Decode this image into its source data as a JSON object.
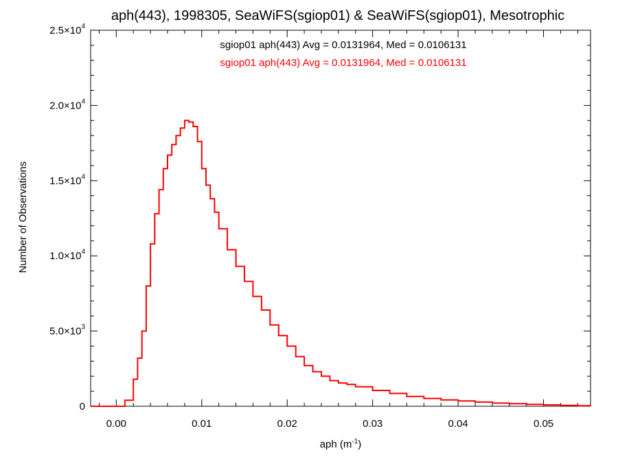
{
  "chart_data": {
    "type": "line",
    "title": "aph(443), 1998305, SeaWiFS(sgiop01) & SeaWiFS(sgiop01), Mesotrophic",
    "xlabel": "aph (m",
    "xlabel_sup": "-1",
    "xlabel_end": ")",
    "ylabel": "Number of Observations",
    "xlim": [
      -0.003,
      0.0555
    ],
    "ylim": [
      0,
      25000
    ],
    "grid": false,
    "x_ticks": [
      {
        "value": 0.0,
        "label": "0.00"
      },
      {
        "value": 0.01,
        "label": "0.01"
      },
      {
        "value": 0.02,
        "label": "0.02"
      },
      {
        "value": 0.03,
        "label": "0.03"
      },
      {
        "value": 0.04,
        "label": "0.04"
      },
      {
        "value": 0.05,
        "label": "0.05"
      }
    ],
    "y_ticks": [
      {
        "value": 0,
        "base": "0",
        "sup": ""
      },
      {
        "value": 5000,
        "base": "5.0×10",
        "sup": "3"
      },
      {
        "value": 10000,
        "base": "1.0×10",
        "sup": "4"
      },
      {
        "value": 15000,
        "base": "1.5×10",
        "sup": "4"
      },
      {
        "value": 20000,
        "base": "2.0×10",
        "sup": "4"
      },
      {
        "value": 25000,
        "base": "2.5×10",
        "sup": "4"
      }
    ],
    "annotations": [
      {
        "text": "sgiop01 aph(443) Avg = 0.0131964, Med = 0.0106131",
        "color": "#000000"
      },
      {
        "text": "sgiop01 aph(443) Avg = 0.0131964, Med = 0.0106131",
        "color": "#ff0000"
      }
    ],
    "series": [
      {
        "color": "#ff0000",
        "x": [
          -0.003,
          0.0,
          0.001,
          0.002,
          0.0025,
          0.003,
          0.0035,
          0.004,
          0.0045,
          0.005,
          0.0055,
          0.006,
          0.0065,
          0.007,
          0.0075,
          0.008,
          0.0085,
          0.009,
          0.0095,
          0.01,
          0.0105,
          0.011,
          0.0115,
          0.012,
          0.013,
          0.014,
          0.015,
          0.016,
          0.017,
          0.018,
          0.019,
          0.02,
          0.021,
          0.022,
          0.023,
          0.024,
          0.025,
          0.026,
          0.027,
          0.028,
          0.03,
          0.032,
          0.034,
          0.036,
          0.038,
          0.04,
          0.042,
          0.044,
          0.046,
          0.048,
          0.05,
          0.052,
          0.054,
          0.0555
        ],
        "y": [
          0,
          0,
          400,
          1800,
          3200,
          5000,
          8000,
          10800,
          12800,
          14400,
          15800,
          16700,
          17400,
          18000,
          18500,
          19000,
          18900,
          18600,
          17600,
          15800,
          14700,
          13800,
          12900,
          11800,
          10400,
          9300,
          8300,
          7300,
          6400,
          5400,
          4700,
          4000,
          3300,
          2700,
          2300,
          2000,
          1700,
          1550,
          1450,
          1300,
          1050,
          850,
          650,
          520,
          420,
          350,
          280,
          210,
          170,
          130,
          90,
          60,
          30,
          10
        ]
      }
    ]
  }
}
